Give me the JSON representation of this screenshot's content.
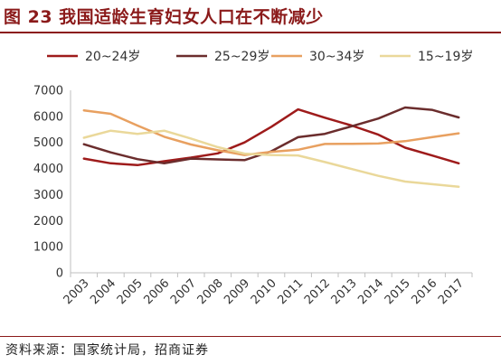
{
  "header": {
    "title": "图 23  我国适龄生育妇女人口在不断减少",
    "title_color": "#8b1a1a"
  },
  "footer": {
    "source": "资料来源：国家统计局，招商证券"
  },
  "chart_data": {
    "type": "line",
    "x": [
      "2003",
      "2004",
      "2005",
      "2006",
      "2007",
      "2008",
      "2009",
      "2010",
      "2011",
      "2012",
      "2013",
      "2014",
      "2015",
      "2016",
      "2017"
    ],
    "ylim": [
      0,
      7000
    ],
    "yticks": [
      "0",
      "1000",
      "2000",
      "3000",
      "4000",
      "5000",
      "6000",
      "7000"
    ],
    "grid": false,
    "legend_position": "top",
    "series": [
      {
        "name": "20~24岁",
        "color": "#9e1b1b",
        "values": [
          4380,
          4200,
          4130,
          4280,
          4420,
          4580,
          5000,
          5600,
          6270,
          5950,
          5650,
          5300,
          4800,
          4500,
          4200
        ]
      },
      {
        "name": "25~29岁",
        "color": "#6b2d2d",
        "values": [
          4930,
          4620,
          4360,
          4200,
          4380,
          4350,
          4320,
          4660,
          5200,
          5330,
          5620,
          5920,
          6340,
          6250,
          5960
        ]
      },
      {
        "name": "30~34岁",
        "color": "#e8a060",
        "values": [
          6230,
          6100,
          5650,
          5220,
          4920,
          4700,
          4520,
          4640,
          4720,
          4940,
          4950,
          4960,
          5050,
          5200,
          5350
        ]
      },
      {
        "name": "15~19岁",
        "color": "#ead89a",
        "values": [
          5180,
          5450,
          5330,
          5450,
          5150,
          4820,
          4570,
          4520,
          4500,
          4250,
          3980,
          3720,
          3500,
          3400,
          3300
        ]
      }
    ]
  }
}
